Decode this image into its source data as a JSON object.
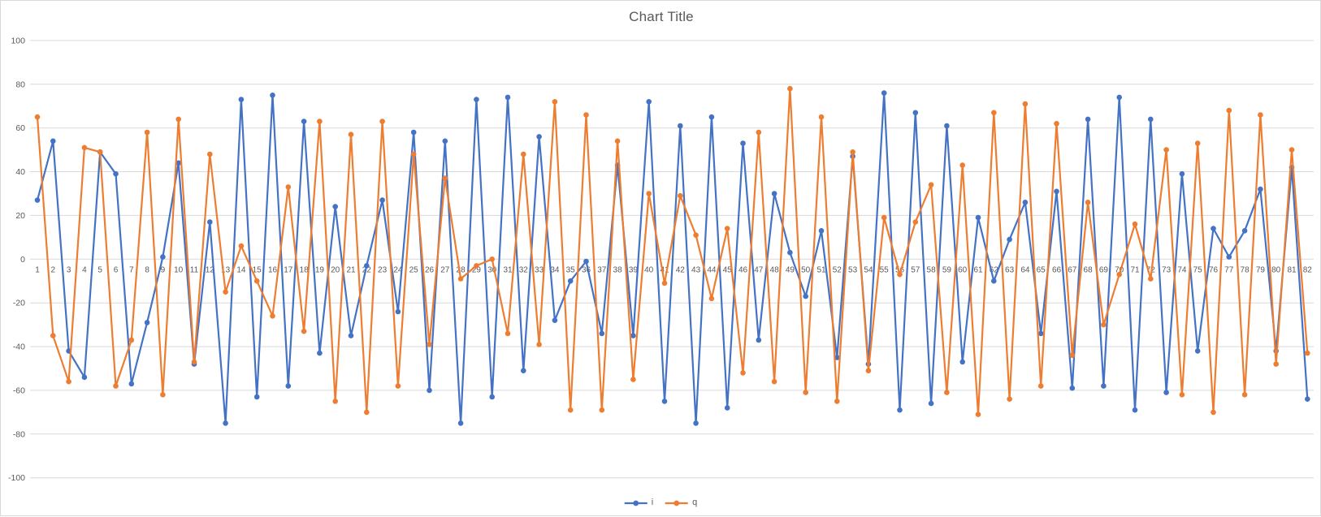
{
  "chart_data": {
    "type": "line",
    "title": "Chart Title",
    "x": [
      1,
      2,
      3,
      4,
      5,
      6,
      7,
      8,
      9,
      10,
      11,
      12,
      13,
      14,
      15,
      16,
      17,
      18,
      19,
      20,
      21,
      22,
      23,
      24,
      25,
      26,
      27,
      28,
      29,
      30,
      31,
      32,
      33,
      34,
      35,
      36,
      37,
      38,
      39,
      40,
      41,
      42,
      43,
      44,
      45,
      46,
      47,
      48,
      49,
      50,
      51,
      52,
      53,
      54,
      55,
      56,
      57,
      58,
      59,
      60,
      61,
      62,
      63,
      64,
      65,
      66,
      67,
      68,
      69,
      70,
      71,
      72,
      73,
      74,
      75,
      76,
      77,
      78,
      79,
      80,
      81,
      82
    ],
    "series": [
      {
        "name": "i",
        "color": "#4472C4",
        "values": [
          27,
          54,
          -42,
          -54,
          49,
          39,
          -57,
          -29,
          1,
          44,
          -48,
          17,
          -75,
          73,
          -63,
          75,
          -58,
          63,
          -43,
          24,
          -35,
          -3,
          27,
          -24,
          58,
          -60,
          54,
          -75,
          73,
          -63,
          74,
          -51,
          56,
          -28,
          -10,
          -1,
          -34,
          43,
          -35,
          72,
          -65,
          61,
          -75,
          65,
          -68,
          53,
          -37,
          30,
          3,
          -17,
          13,
          -45,
          47,
          -48,
          76,
          -69,
          67,
          -66,
          61,
          -47,
          19,
          -10,
          9,
          26,
          -34,
          31,
          -59,
          64,
          -58,
          74,
          -69,
          64,
          -61,
          39,
          -42,
          14,
          1,
          13,
          32,
          -42,
          42,
          -64
        ]
      },
      {
        "name": "q",
        "color": "#ED7D31",
        "values": [
          65,
          -35,
          -56,
          51,
          49,
          -58,
          -37,
          58,
          -62,
          64,
          -47,
          48,
          -15,
          6,
          -10,
          -26,
          33,
          -33,
          63,
          -65,
          57,
          -70,
          63,
          -58,
          48,
          -39,
          37,
          -9,
          -3,
          0,
          -34,
          48,
          -39,
          72,
          -69,
          66,
          -69,
          54,
          -55,
          30,
          -11,
          29,
          11,
          -18,
          14,
          -52,
          58,
          -56,
          78,
          -61,
          65,
          -65,
          49,
          -51,
          19,
          -7,
          17,
          34,
          -61,
          43,
          -71,
          67,
          -64,
          71,
          -58,
          62,
          -44,
          26,
          -30,
          -7,
          16,
          -9,
          50,
          -62,
          53,
          -70,
          68,
          -62,
          66,
          -48,
          50,
          -43
        ]
      }
    ],
    "ylim": [
      -100,
      100
    ],
    "yticks": [
      100,
      80,
      60,
      40,
      20,
      0,
      -20,
      -40,
      -60,
      -80,
      -100
    ],
    "grid": true,
    "legend_position": "bottom",
    "colors": {
      "grid": "#D9D9D9",
      "axis_text": "#595959",
      "title_text": "#595959",
      "background": "#FFFFFF"
    }
  }
}
